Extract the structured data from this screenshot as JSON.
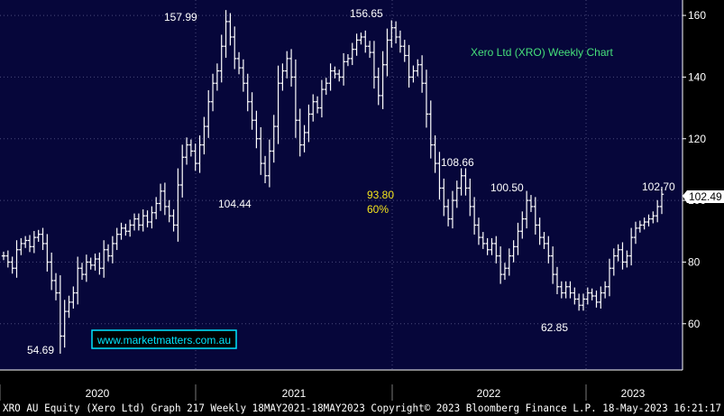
{
  "footer": {
    "text": "XRO AU Equity (Xero Ltd) Graph 217  Weekly 18MAY2021-18MAY2023  Copyright© 2023 Bloomberg Finance L.P.  18-May-2023 16:21:17"
  },
  "colors": {
    "background": "#000000",
    "plot_background": "#06063a",
    "grid": "#4a4a7a",
    "price_bars": "#ffffff",
    "title": "#46e07a",
    "fib_annotation": "#f5e51c",
    "watermark_border": "#00e5ff"
  },
  "chart_data": {
    "type": "ohlc",
    "title": "Xero Ltd (XRO) Weekly Chart",
    "watermark": "www.marketmatters.com.au",
    "y_range": [
      45,
      165
    ],
    "y_ticks": [
      60,
      80,
      100,
      120,
      140,
      160
    ],
    "x_axis_labels": [
      "2020",
      "2021",
      "2022",
      "2023"
    ],
    "last_price": "102.49",
    "grid": true,
    "annotations": [
      {
        "text": "157.99",
        "value": 157.99
      },
      {
        "text": "156.65",
        "value": 156.65
      },
      {
        "text": "104.44",
        "value": 104.44
      },
      {
        "text": "108.66",
        "value": 108.66
      },
      {
        "text": "100.50",
        "value": 100.5
      },
      {
        "text": "102.70",
        "value": 102.7
      },
      {
        "text": "62.85",
        "value": 62.85
      },
      {
        "text": "54.69",
        "value": 54.69
      },
      {
        "text": "93.80",
        "value": 93.8,
        "style": "fib"
      },
      {
        "text": "60%",
        "value": 60,
        "style": "fib"
      }
    ],
    "series": [
      {
        "values": [
          82,
          80,
          78,
          84,
          86,
          87,
          85,
          88,
          89,
          86,
          80,
          74,
          70,
          56,
          64,
          67,
          70,
          78,
          76,
          80,
          79,
          81,
          78,
          84,
          82,
          86,
          89,
          91,
          90,
          92,
          94,
          92,
          95,
          93,
          96,
          99,
          103,
          98,
          95,
          92,
          105,
          114,
          118,
          116,
          112,
          118,
          124,
          132,
          138,
          142,
          150,
          158,
          153,
          146,
          143,
          138,
          132,
          126,
          120,
          112,
          108,
          116,
          124,
          138,
          142,
          146,
          140,
          126,
          118,
          122,
          128,
          132,
          130,
          136,
          138,
          142,
          141,
          140,
          145,
          146,
          149,
          152,
          153,
          150,
          148,
          140,
          134,
          144,
          152,
          156,
          153,
          150,
          147,
          140,
          142,
          144,
          138,
          128,
          118,
          112,
          104,
          98,
          94,
          100,
          104,
          108,
          104,
          98,
          92,
          88,
          86,
          84,
          86,
          82,
          76,
          78,
          82,
          85,
          90,
          94,
          100,
          98,
          92,
          88,
          86,
          82,
          76,
          72,
          70,
          72,
          70,
          68,
          66,
          68,
          70,
          69,
          67,
          70,
          72,
          78,
          82,
          84,
          80,
          82,
          88,
          91,
          92,
          93,
          94,
          95,
          98,
          102
        ]
      }
    ]
  }
}
